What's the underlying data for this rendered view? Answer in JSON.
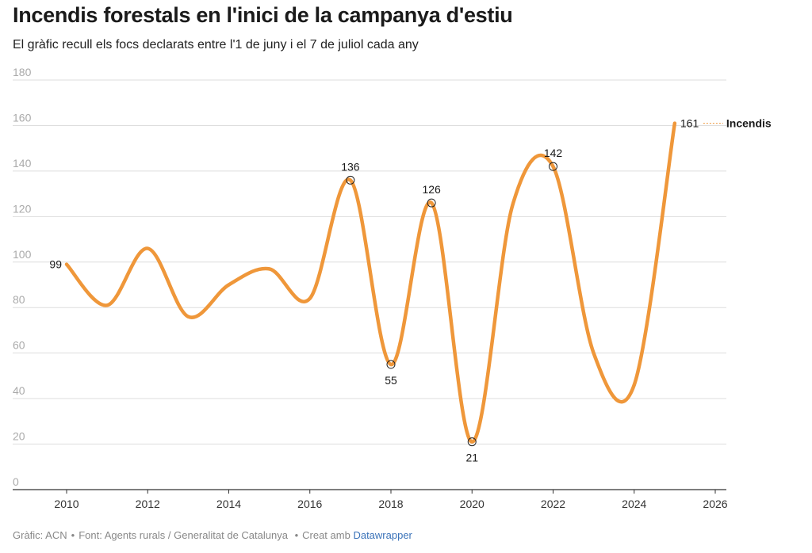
{
  "title": "Incendis forestals en l'inici de la campanya d'estiu",
  "subtitle": "El gràfic recull els focs declarats entre l'1 de juny i el 7 de juliol cada any",
  "footer": {
    "chart_credit": "Gràfic: ACN",
    "source": "Font: Agents rurals / Generalitat de Catalunya",
    "made_with": "Creat amb",
    "tool": "Datawrapper"
  },
  "colors": {
    "line": "#ef973a",
    "grid": "#dddddd",
    "axis": "#333333",
    "tick_y": "#aaaaaa",
    "tick_x": "#333333"
  },
  "chart_data": {
    "type": "line",
    "series": [
      {
        "name": "Incendis",
        "x": [
          2010,
          2011,
          2012,
          2013,
          2014,
          2015,
          2016,
          2017,
          2018,
          2019,
          2020,
          2021,
          2022,
          2023,
          2024,
          2025
        ],
        "values": [
          99,
          81,
          106,
          76,
          90,
          97,
          84,
          136,
          55,
          126,
          21,
          125,
          142,
          60,
          46,
          161
        ]
      }
    ],
    "xlim": [
      2009,
      2026
    ],
    "ylim": [
      0,
      180
    ],
    "x_ticks": [
      2010,
      2012,
      2014,
      2016,
      2018,
      2020,
      2022,
      2024,
      2026
    ],
    "y_ticks": [
      0,
      20,
      40,
      60,
      80,
      100,
      120,
      140,
      160,
      180
    ],
    "grid": true,
    "legend": "line-end label",
    "annotations": [
      {
        "x": 2010,
        "y": 99,
        "label": "99",
        "marker": false
      },
      {
        "x": 2017,
        "y": 136,
        "label": "136",
        "marker": true
      },
      {
        "x": 2018,
        "y": 55,
        "label": "55",
        "marker": true
      },
      {
        "x": 2019,
        "y": 126,
        "label": "126",
        "marker": true
      },
      {
        "x": 2020,
        "y": 21,
        "label": "21",
        "marker": true
      },
      {
        "x": 2022,
        "y": 142,
        "label": "142",
        "marker": true
      },
      {
        "x": 2025,
        "y": 161,
        "label": "161",
        "marker": false
      }
    ]
  }
}
